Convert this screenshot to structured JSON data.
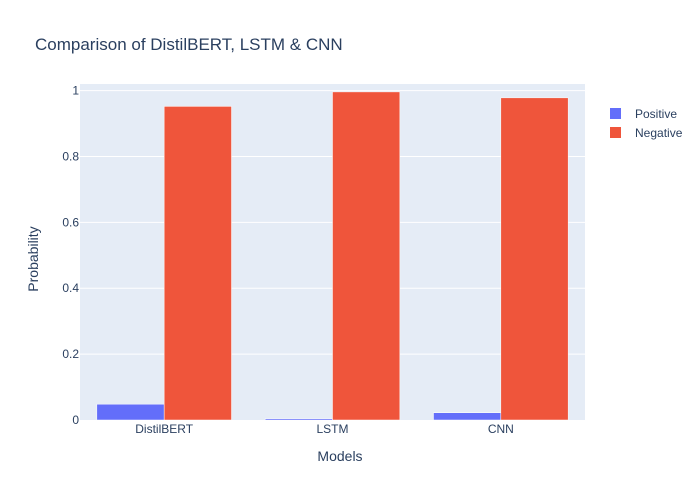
{
  "chart_data": {
    "type": "bar",
    "title": "Comparison of DistilBERT, LSTM & CNN",
    "xlabel": "Models",
    "ylabel": "Probability",
    "categories": [
      "DistilBERT",
      "LSTM",
      "CNN"
    ],
    "series": [
      {
        "name": "Positive",
        "values": [
          0.048,
          0.004,
          0.022
        ],
        "color": "#636efa"
      },
      {
        "name": "Negative",
        "values": [
          0.952,
          0.996,
          0.978
        ],
        "color": "#ef553b"
      }
    ],
    "ylim": [
      0,
      1.02
    ],
    "yticks": [
      0,
      0.2,
      0.4,
      0.6,
      0.8,
      1
    ],
    "ytick_labels": [
      "0",
      "0.2",
      "0.4",
      "0.6",
      "0.8",
      "1"
    ],
    "grid": true,
    "legend_position": "top-right",
    "plot_background": "#e5ecf6"
  }
}
